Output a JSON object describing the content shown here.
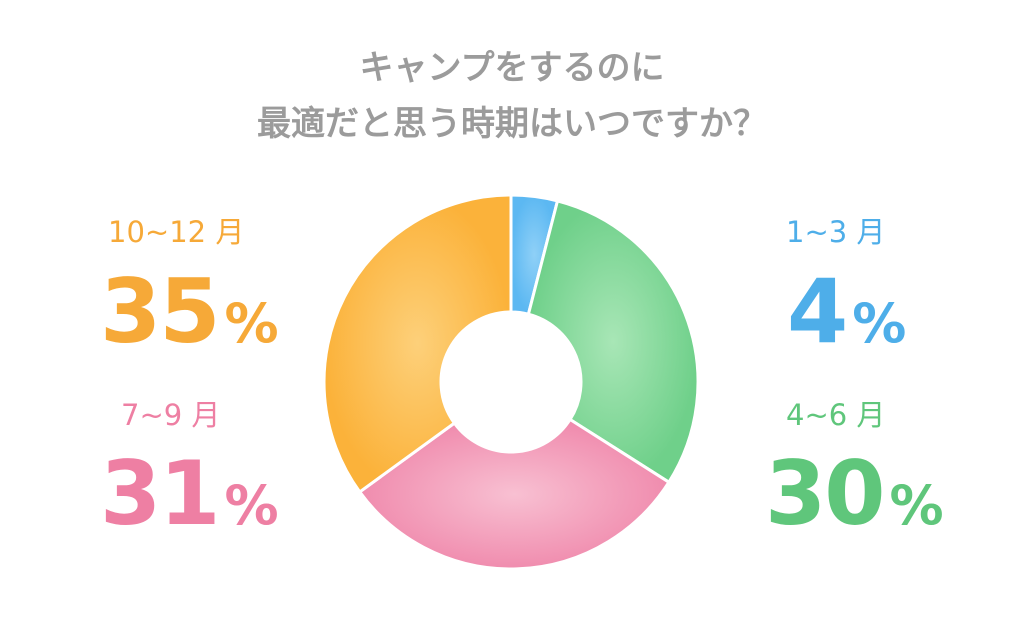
{
  "title": {
    "line1": "キャンプをするのに",
    "line2": "最適だと思う時期はいつですか？"
  },
  "chart_data": {
    "type": "pie",
    "donut": true,
    "categories": [
      "1~3 月",
      "4~6 月",
      "7~9 月",
      "10~12 月"
    ],
    "values": [
      4,
      30,
      31,
      35
    ],
    "value_labels": [
      "4",
      "30",
      "31",
      "35"
    ],
    "unit": "%",
    "colors": [
      "#5cb8f2",
      "#6fd08a",
      "#f08cae",
      "#fbb23a"
    ],
    "start": "top",
    "direction": "clockwise"
  }
}
